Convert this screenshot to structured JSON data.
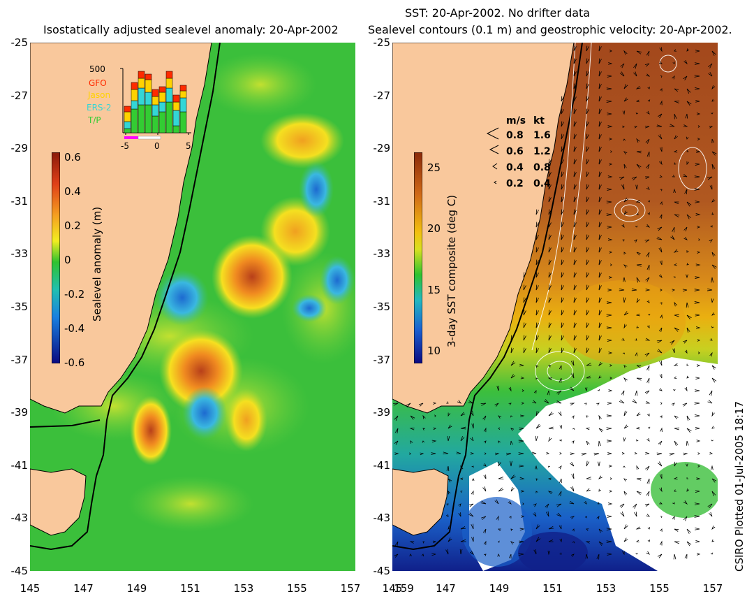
{
  "titles": {
    "left": "Isostatically adjusted sealevel anomaly: 20-Apr-2002",
    "right_line1": "SST: 20-Apr-2002. No drifter data",
    "right_line2": "Sealevel contours (0.1 m) and geostrophic velocity: 20-Apr-2002."
  },
  "axes": {
    "lat_ticks": [
      "-25",
      "-27",
      "-29",
      "-31",
      "-33",
      "-35",
      "-37",
      "-39",
      "-41",
      "-43",
      "-45"
    ],
    "lon_ticks": [
      "145",
      "147",
      "149",
      "151",
      "153",
      "155",
      "157",
      "159"
    ]
  },
  "left_colorbar": {
    "label": "Sealevel anomaly (m)",
    "ticks": [
      "0.6",
      "0.4",
      "0.2",
      "0",
      "-0.2",
      "-0.4",
      "-0.6"
    ]
  },
  "right_colorbar": {
    "label": "3-day SST composite (deg C)",
    "ticks": [
      "25",
      "20",
      "15",
      "10"
    ]
  },
  "satellite_legend": {
    "scale": "500",
    "missions": [
      "GFO",
      "Jason",
      "ERS-2",
      "T/P"
    ],
    "colors": [
      "#ff2a00",
      "#ffd200",
      "#33d6d6",
      "#33cc33"
    ],
    "x_ticks": [
      "-5",
      "0",
      "5"
    ]
  },
  "velocity_legend": {
    "header_ms": "m/s",
    "header_kt": "kt",
    "rows": [
      {
        "ms": "0.8",
        "kt": "1.6"
      },
      {
        "ms": "0.6",
        "kt": "1.2"
      },
      {
        "ms": "0.4",
        "kt": "0.8"
      },
      {
        "ms": "0.2",
        "kt": "0.4"
      }
    ]
  },
  "credit": "CSIRO Plotted 01-Jul-2005 18:17",
  "colors": {
    "land": "#f9c89c",
    "sea_green": "#33bb33",
    "warm": "#c8501a",
    "cool": "#1a8ad6"
  }
}
